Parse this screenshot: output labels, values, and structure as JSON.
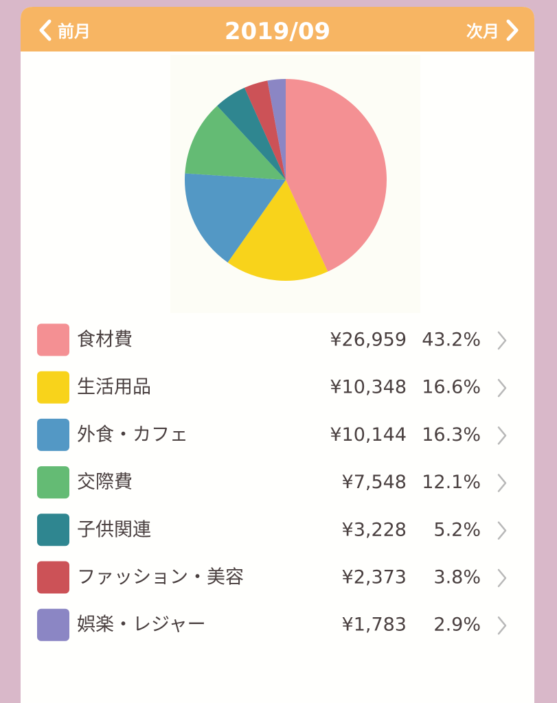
{
  "header": {
    "prev": "前月",
    "title": "2019/09",
    "next": "次月"
  },
  "chart_data": {
    "type": "pie",
    "categories": [
      "食材費",
      "生活用品",
      "外食・カフェ",
      "交際費",
      "子供関連",
      "ファッション・美容",
      "娯楽・レジャー"
    ],
    "amounts": [
      "¥26,959",
      "¥10,348",
      "¥10,144",
      "¥7,548",
      "¥3,228",
      "¥2,373",
      "¥1,783"
    ],
    "values": [
      43.2,
      16.6,
      16.3,
      12.1,
      5.2,
      3.8,
      2.9
    ],
    "value_labels": [
      "43.2%",
      "16.6%",
      "16.3%",
      "12.1%",
      "5.2%",
      "3.8%",
      "2.9%"
    ],
    "colors": [
      "#f49093",
      "#f8d31b",
      "#5398c5",
      "#64bb74",
      "#2f8690",
      "#cc5257",
      "#8b86c4"
    ]
  }
}
